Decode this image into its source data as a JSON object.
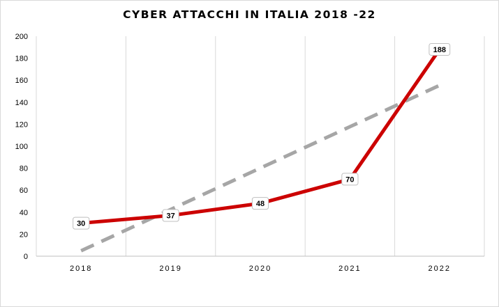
{
  "chart_data": {
    "type": "line",
    "title": "CYBER ATTACCHI IN ITALIA 2018 -22",
    "categories": [
      "2018",
      "2019",
      "2020",
      "2021",
      "2022"
    ],
    "yticks": [
      "0",
      "20",
      "40",
      "60",
      "80",
      "100",
      "120",
      "140",
      "160",
      "180",
      "200"
    ],
    "ylim": [
      0,
      200
    ],
    "grid": "vertical",
    "series": [
      {
        "values": [
          30,
          37,
          48,
          70,
          188
        ],
        "labels": [
          "30",
          "37",
          "48",
          "70",
          "188"
        ],
        "color": "#cc0000",
        "style": "solid",
        "data_labels": true
      },
      {
        "kind": "linear-trendline",
        "values": [
          4.9,
          42.5,
          80.1,
          117.7,
          155.3
        ],
        "color": "#a6a6a6",
        "style": "dashed"
      }
    ]
  }
}
